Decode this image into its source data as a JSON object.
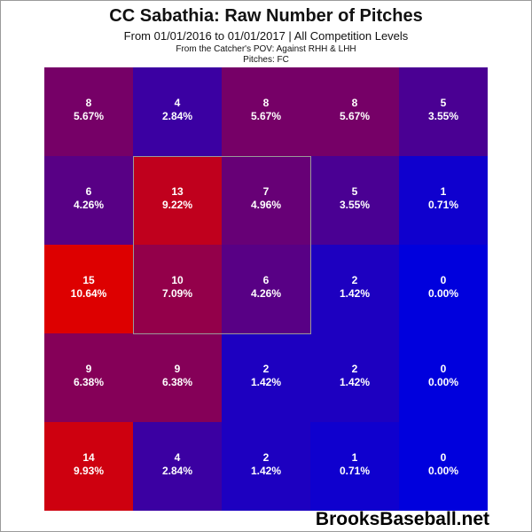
{
  "chart_data": {
    "type": "heatmap",
    "title": "CC Sabathia: Raw Number of Pitches",
    "subtitle": "From 01/01/2016 to 01/01/2017 | All Competition Levels",
    "notes": [
      "From the Catcher's POV:  Against RHH & LHH",
      "Pitches:  FC"
    ],
    "rows": 5,
    "cols": 5,
    "counts": [
      [
        8,
        4,
        8,
        8,
        5
      ],
      [
        6,
        13,
        7,
        5,
        1
      ],
      [
        15,
        10,
        6,
        2,
        0
      ],
      [
        9,
        9,
        2,
        2,
        0
      ],
      [
        14,
        4,
        2,
        1,
        0
      ]
    ],
    "percents": [
      [
        "5.67%",
        "2.84%",
        "5.67%",
        "5.67%",
        "3.55%"
      ],
      [
        "4.26%",
        "9.22%",
        "4.96%",
        "3.55%",
        "0.71%"
      ],
      [
        "10.64%",
        "7.09%",
        "4.26%",
        "1.42%",
        "0.00%"
      ],
      [
        "6.38%",
        "6.38%",
        "1.42%",
        "1.42%",
        "0.00%"
      ],
      [
        "9.93%",
        "2.84%",
        "1.42%",
        "0.71%",
        "0.00%"
      ]
    ],
    "strike_zone": {
      "row_start": 1,
      "row_end": 3,
      "col_start": 1,
      "col_end": 3
    },
    "color_scale": {
      "low": "#0000dd",
      "high": "#dd0000"
    }
  },
  "watermark": "BrooksBaseball.net"
}
